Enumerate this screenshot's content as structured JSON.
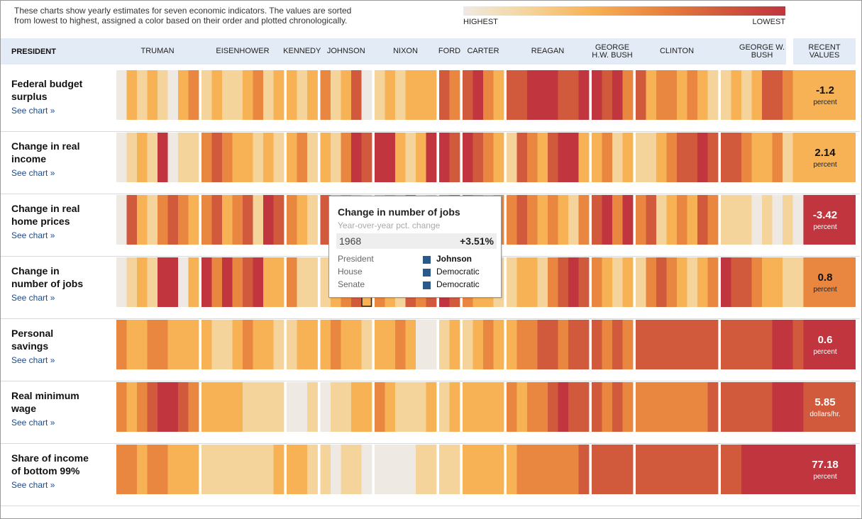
{
  "intro_text": "These charts show yearly estimates for seven economic indicators. The values are sorted\nfrom lowest to highest, assigned a color based on their order and plotted chronologically.",
  "legend": {
    "high": "HIGHEST",
    "low": "LOWEST",
    "gradient": [
      "#eeeae3",
      "#f5d49c",
      "#f7b255",
      "#e98640",
      "#d25a3c",
      "#c0353e"
    ]
  },
  "header": {
    "president": "PRESIDENT",
    "recent": "RECENT\nVALUES"
  },
  "presidents": [
    {
      "name": "TRUMAN",
      "years": 8
    },
    {
      "name": "EISENHOWER",
      "years": 8
    },
    {
      "name": "KENNEDY",
      "years": 3
    },
    {
      "name": "JOHNSON",
      "years": 5
    },
    {
      "name": "NIXON",
      "years": 6
    },
    {
      "name": "FORD",
      "years": 2
    },
    {
      "name": "CARTER",
      "years": 4
    },
    {
      "name": "REAGAN",
      "years": 8
    },
    {
      "name": "GEORGE\nH.W. BUSH",
      "years": 4
    },
    {
      "name": "CLINTON",
      "years": 8
    },
    {
      "name": "GEORGE W.\nBUSH",
      "years": 8
    }
  ],
  "see_chart_label": "See chart »",
  "indicators": [
    {
      "title": "Federal budget\nsurplus",
      "recent_value": "-1.2",
      "recent_unit": "percent",
      "recent_color": "#f7b255",
      "levels": [
        0,
        2,
        1,
        2,
        1,
        0,
        2,
        3,
        1,
        2,
        1,
        1,
        2,
        3,
        1,
        2,
        2,
        1,
        2,
        3,
        1,
        2,
        4,
        0,
        1,
        2,
        1,
        2,
        2,
        2,
        4,
        3,
        4,
        5,
        3,
        2,
        4,
        4,
        5,
        5,
        5,
        4,
        4,
        5,
        5,
        4,
        5,
        3,
        4,
        2,
        3,
        3,
        2,
        3,
        2,
        1,
        1,
        2,
        1,
        2,
        4,
        4,
        3,
        2,
        1
      ]
    },
    {
      "title": "Change in real\nincome",
      "recent_value": "2.14",
      "recent_unit": "percent",
      "recent_color": "#f7b255",
      "levels": [
        0,
        1,
        2,
        1,
        5,
        0,
        1,
        1,
        3,
        4,
        3,
        2,
        2,
        1,
        2,
        1,
        2,
        3,
        1,
        2,
        1,
        3,
        5,
        4,
        5,
        5,
        2,
        1,
        2,
        5,
        5,
        4,
        5,
        4,
        3,
        2,
        1,
        4,
        3,
        2,
        4,
        5,
        5,
        2,
        2,
        3,
        1,
        2,
        1,
        1,
        2,
        3,
        4,
        4,
        5,
        4,
        4,
        4,
        3,
        2,
        2,
        3,
        1,
        2,
        1
      ]
    },
    {
      "title": "Change in real\nhome prices",
      "recent_value": "-3.42",
      "recent_unit": "percent",
      "recent_color": "#c0353e",
      "levels": [
        0,
        4,
        2,
        1,
        3,
        4,
        3,
        2,
        3,
        4,
        2,
        3,
        4,
        1,
        5,
        4,
        3,
        2,
        1,
        4,
        2,
        3,
        2,
        1,
        2,
        3,
        2,
        4,
        1,
        2,
        3,
        4,
        4,
        3,
        2,
        3,
        3,
        4,
        3,
        2,
        3,
        2,
        1,
        3,
        4,
        5,
        3,
        5,
        3,
        4,
        1,
        2,
        3,
        2,
        4,
        3,
        1,
        1,
        1,
        0,
        1,
        0,
        1,
        0,
        5
      ]
    },
    {
      "title": "Change in\nnumber of jobs",
      "recent_value": "0.8",
      "recent_unit": "percent",
      "recent_color": "#e98640",
      "levels": [
        0,
        1,
        2,
        1,
        5,
        5,
        0,
        2,
        5,
        3,
        5,
        3,
        4,
        5,
        2,
        2,
        3,
        1,
        1,
        1,
        2,
        3,
        4,
        2,
        3,
        2,
        1,
        4,
        3,
        4,
        5,
        4,
        3,
        2,
        2,
        1,
        1,
        2,
        2,
        1,
        3,
        4,
        5,
        4,
        3,
        2,
        1,
        2,
        1,
        3,
        4,
        3,
        2,
        1,
        2,
        3,
        5,
        4,
        4,
        3,
        2,
        2,
        1,
        1,
        0
      ]
    },
    {
      "title": "Personal\nsavings",
      "recent_value": "0.6",
      "recent_unit": "percent",
      "recent_color": "#c0353e",
      "levels": [
        3,
        2,
        2,
        3,
        3,
        2,
        2,
        2,
        2,
        1,
        1,
        2,
        3,
        2,
        2,
        1,
        1,
        2,
        2,
        2,
        3,
        2,
        2,
        1,
        2,
        2,
        3,
        2,
        0,
        0,
        1,
        2,
        1,
        2,
        3,
        2,
        2,
        3,
        3,
        4,
        4,
        3,
        4,
        4,
        4,
        3,
        4,
        3,
        4,
        4,
        4,
        4,
        4,
        4,
        4,
        4,
        4,
        4,
        4,
        4,
        4,
        5,
        5,
        4,
        4
      ]
    },
    {
      "title": "Real minimum\nwage",
      "recent_value": "5.85",
      "recent_unit": "dollars/hr.",
      "recent_color": "#d25a3c",
      "levels": [
        3,
        2,
        3,
        4,
        5,
        5,
        4,
        3,
        2,
        2,
        2,
        2,
        1,
        1,
        1,
        1,
        0,
        0,
        1,
        0,
        1,
        1,
        2,
        2,
        3,
        2,
        1,
        1,
        1,
        2,
        1,
        2,
        2,
        2,
        2,
        2,
        3,
        2,
        3,
        3,
        4,
        5,
        4,
        4,
        4,
        3,
        4,
        3,
        3,
        3,
        3,
        3,
        3,
        3,
        3,
        4,
        4,
        4,
        4,
        4,
        4,
        5,
        5,
        5,
        5
      ]
    },
    {
      "title": "Share of income\nof bottom 99%",
      "recent_value": "77.18",
      "recent_unit": "percent",
      "recent_color": "#c0353e",
      "levels": [
        3,
        3,
        2,
        3,
        3,
        2,
        2,
        2,
        1,
        1,
        1,
        1,
        1,
        1,
        1,
        2,
        2,
        2,
        1,
        1,
        0,
        1,
        1,
        0,
        0,
        0,
        0,
        0,
        1,
        1,
        1,
        1,
        2,
        2,
        2,
        2,
        2,
        3,
        3,
        3,
        3,
        3,
        3,
        4,
        4,
        4,
        4,
        4,
        4,
        4,
        4,
        4,
        4,
        4,
        4,
        4,
        4,
        4,
        5,
        5,
        5,
        5,
        5,
        5,
        5
      ]
    }
  ],
  "tooltip": {
    "title": "Change in number of jobs",
    "subtitle": "Year-over-year pct. change",
    "year": "1968",
    "value": "+3.51%",
    "rows": [
      {
        "label": "President",
        "value": "Johnson"
      },
      {
        "label": "House",
        "value": "Democratic"
      },
      {
        "label": "Senate",
        "value": "Democratic"
      }
    ]
  }
}
